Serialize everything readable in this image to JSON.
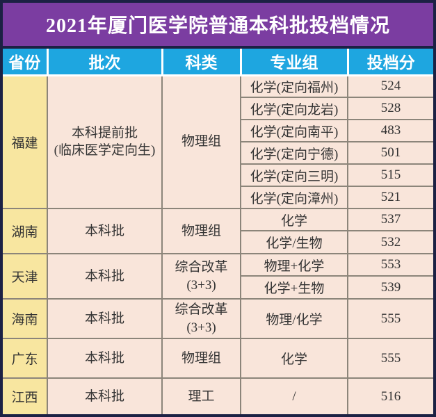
{
  "title": "2021年厦门医学院普通本科批投档情况",
  "colors": {
    "frame": "#1c2144",
    "title_bg": "#7b3da1",
    "title_text": "#ffffff",
    "header_bg": "#1ea6e0",
    "header_text": "#ffffff",
    "cell_bg": "#f9e5da",
    "province_bg": "#f8e6a0",
    "border": "#8c857a",
    "body_text": "#333333"
  },
  "table": {
    "headers": [
      "省份",
      "批次",
      "科类",
      "专业组",
      "投档分"
    ],
    "groups": [
      {
        "province": "福建",
        "batch_line1": "本科提前批",
        "batch_line2": "(临床医学定向生)",
        "category_line1": "物理组",
        "rows": [
          {
            "major_group": "化学(定向福州)",
            "score": "524"
          },
          {
            "major_group": "化学(定向龙岩)",
            "score": "528"
          },
          {
            "major_group": "化学(定向南平)",
            "score": "483"
          },
          {
            "major_group": "化学(定向宁德)",
            "score": "501"
          },
          {
            "major_group": "化学(定向三明)",
            "score": "515"
          },
          {
            "major_group": "化学(定向漳州)",
            "score": "521"
          }
        ]
      },
      {
        "province": "湖南",
        "batch_line1": "本科批",
        "category_line1": "物理组",
        "rows": [
          {
            "major_group": "化学",
            "score": "537"
          },
          {
            "major_group": "化学/生物",
            "score": "532"
          }
        ]
      },
      {
        "province": "天津",
        "batch_line1": "本科批",
        "category_line1": "综合改革",
        "category_line2": "(3+3)",
        "rows": [
          {
            "major_group": "物理+化学",
            "score": "553"
          },
          {
            "major_group": "化学+生物",
            "score": "539"
          }
        ]
      },
      {
        "province": "海南",
        "batch_line1": "本科批",
        "category_line1": "综合改革",
        "category_line2": "(3+3)",
        "rows": [
          {
            "major_group": "物理/化学",
            "score": "555"
          }
        ]
      },
      {
        "province": "广东",
        "batch_line1": "本科批",
        "category_line1": "物理组",
        "rows": [
          {
            "major_group": "化学",
            "score": "555"
          }
        ]
      },
      {
        "province": "江西",
        "batch_line1": "本科批",
        "category_line1": "理工",
        "rows": [
          {
            "major_group": "/",
            "score": "516"
          }
        ]
      }
    ]
  },
  "chart_data": {
    "type": "table",
    "title": "2021年厦门医学院普通本科批投档情况",
    "columns": [
      "省份",
      "批次",
      "科类",
      "专业组",
      "投档分"
    ],
    "rows": [
      [
        "福建",
        "本科提前批(临床医学定向生)",
        "物理组",
        "化学(定向福州)",
        524
      ],
      [
        "福建",
        "本科提前批(临床医学定向生)",
        "物理组",
        "化学(定向龙岩)",
        528
      ],
      [
        "福建",
        "本科提前批(临床医学定向生)",
        "物理组",
        "化学(定向南平)",
        483
      ],
      [
        "福建",
        "本科提前批(临床医学定向生)",
        "物理组",
        "化学(定向宁德)",
        501
      ],
      [
        "福建",
        "本科提前批(临床医学定向生)",
        "物理组",
        "化学(定向三明)",
        515
      ],
      [
        "福建",
        "本科提前批(临床医学定向生)",
        "物理组",
        "化学(定向漳州)",
        521
      ],
      [
        "湖南",
        "本科批",
        "物理组",
        "化学",
        537
      ],
      [
        "湖南",
        "本科批",
        "物理组",
        "化学/生物",
        532
      ],
      [
        "天津",
        "本科批",
        "综合改革(3+3)",
        "物理+化学",
        553
      ],
      [
        "天津",
        "本科批",
        "综合改革(3+3)",
        "化学+生物",
        539
      ],
      [
        "海南",
        "本科批",
        "综合改革(3+3)",
        "物理/化学",
        555
      ],
      [
        "广东",
        "本科批",
        "物理组",
        "化学",
        555
      ],
      [
        "江西",
        "本科批",
        "理工",
        "/",
        516
      ]
    ]
  }
}
